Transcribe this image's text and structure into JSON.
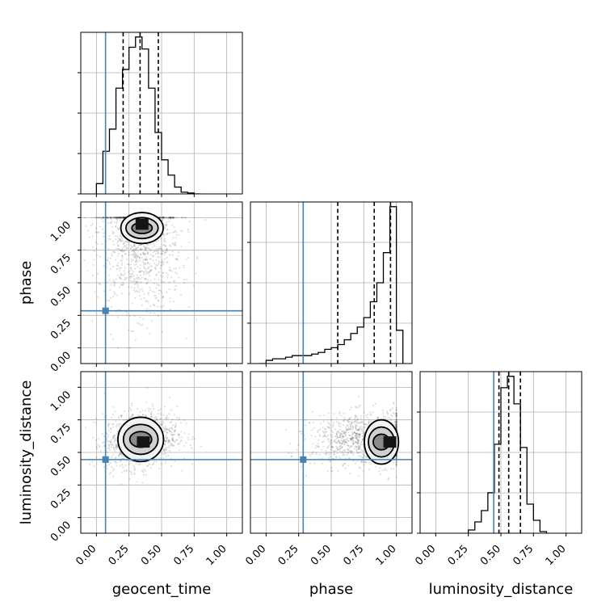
{
  "chart_data": {
    "type": "corner",
    "params": [
      "geocent_time",
      "phase",
      "luminosity_distance"
    ],
    "axis_labels": {
      "geocent_time": "geocent_time",
      "phase": "phase",
      "luminosity_distance": "luminosity_distance"
    },
    "range": [
      -0.12,
      1.12
    ],
    "ticks": [
      0.0,
      0.25,
      0.5,
      0.75,
      1.0
    ],
    "tick_labels": [
      "0.00",
      "0.25",
      "0.50",
      "0.75",
      "1.00"
    ],
    "grid": true,
    "truths": {
      "geocent_time": 0.07,
      "phase": 0.285,
      "luminosity_distance": 0.445
    },
    "colors": {
      "truth": "#4682b4",
      "hist": "#000000",
      "grid": "#b0b0b0"
    },
    "marginals": {
      "geocent_time": {
        "bin_edges": [
          0.0,
          0.05,
          0.1,
          0.15,
          0.2,
          0.25,
          0.3,
          0.35,
          0.4,
          0.45,
          0.5,
          0.55,
          0.6,
          0.65,
          0.7,
          0.75,
          0.8
        ],
        "counts": [
          0.06,
          0.25,
          0.38,
          0.62,
          0.73,
          0.86,
          0.92,
          0.85,
          0.62,
          0.36,
          0.2,
          0.11,
          0.04,
          0.01,
          0.005,
          0
        ],
        "quantiles": [
          0.205,
          0.335,
          0.475
        ]
      },
      "phase": {
        "bin_edges": [
          -0.05,
          0.0,
          0.05,
          0.1,
          0.15,
          0.2,
          0.25,
          0.3,
          0.35,
          0.4,
          0.45,
          0.5,
          0.55,
          0.6,
          0.65,
          0.7,
          0.75,
          0.8,
          0.85,
          0.9,
          0.95,
          1.0,
          1.05
        ],
        "counts": [
          0,
          0.02,
          0.03,
          0.03,
          0.04,
          0.05,
          0.05,
          0.05,
          0.06,
          0.07,
          0.09,
          0.1,
          0.12,
          0.15,
          0.19,
          0.23,
          0.29,
          0.39,
          0.51,
          0.7,
          0.99,
          0.21
        ],
        "quantiles": [
          0.55,
          0.83,
          0.955
        ]
      },
      "luminosity_distance": {
        "bin_edges": [
          0.25,
          0.3,
          0.35,
          0.4,
          0.45,
          0.5,
          0.55,
          0.6,
          0.65,
          0.7,
          0.75,
          0.8,
          0.85
        ],
        "counts": [
          0.02,
          0.07,
          0.14,
          0.25,
          0.55,
          0.9,
          0.97,
          0.8,
          0.53,
          0.18,
          0.08,
          0.01
        ],
        "quantiles": [
          0.485,
          0.56,
          0.65
        ]
      }
    },
    "joint": [
      {
        "x": "geocent_time",
        "y": "phase",
        "mean": [
          0.33,
          0.85
        ],
        "sd": [
          0.16,
          0.28
        ],
        "corr": -0.1,
        "n": 1300,
        "y_clip": [
          0.0,
          1.0
        ],
        "dense_box": [
          [
            0.22,
            0.48
          ],
          [
            0.85,
            0.99
          ]
        ],
        "peak": [
          0.35,
          0.95
        ]
      },
      {
        "x": "geocent_time",
        "y": "luminosity_distance",
        "mean": [
          0.34,
          0.6
        ],
        "sd": [
          0.14,
          0.11
        ],
        "corr": 0.15,
        "n": 1200,
        "dense_box": [
          [
            0.2,
            0.48
          ],
          [
            0.5,
            0.7
          ]
        ],
        "peak": [
          0.36,
          0.58
        ]
      },
      {
        "x": "phase",
        "y": "luminosity_distance",
        "mean": [
          0.8,
          0.6
        ],
        "sd": [
          0.22,
          0.1
        ],
        "corr": 0.05,
        "n": 1200,
        "x_clip": [
          0.0,
          1.0
        ],
        "dense_box": [
          [
            0.78,
            0.99
          ],
          [
            0.48,
            0.68
          ]
        ],
        "peak": [
          0.95,
          0.58
        ]
      }
    ]
  }
}
